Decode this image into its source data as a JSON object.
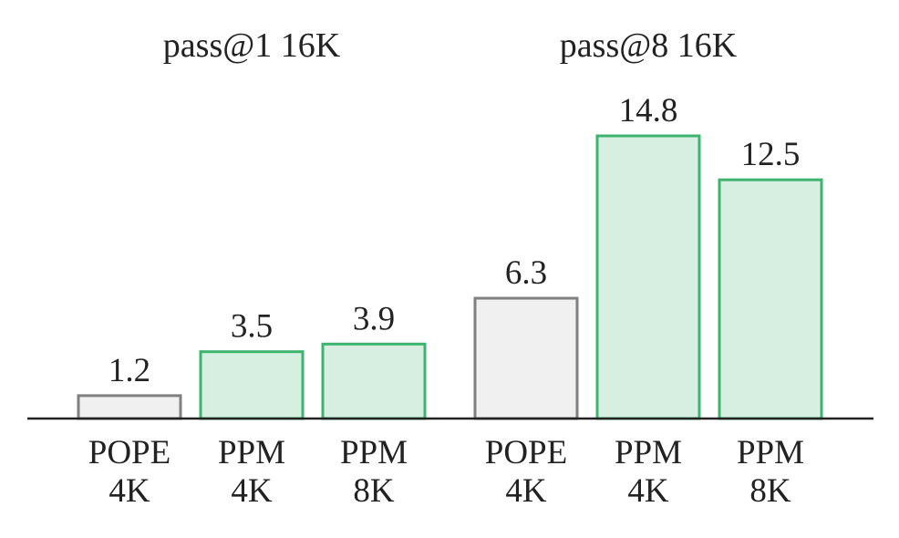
{
  "chart_data": {
    "type": "bar",
    "groups": [
      {
        "title": "pass@1 16K",
        "bars": [
          {
            "label_line1": "POPE",
            "label_line2": "4K",
            "value": 1.2,
            "value_label": "1.2",
            "kind": "baseline"
          },
          {
            "label_line1": "PPM",
            "label_line2": "4K",
            "value": 3.5,
            "value_label": "3.5",
            "kind": "ours"
          },
          {
            "label_line1": "PPM",
            "label_line2": "8K",
            "value": 3.9,
            "value_label": "3.9",
            "kind": "ours"
          }
        ]
      },
      {
        "title": "pass@8 16K",
        "bars": [
          {
            "label_line1": "POPE",
            "label_line2": "4K",
            "value": 6.3,
            "value_label": "6.3",
            "kind": "baseline"
          },
          {
            "label_line1": "PPM",
            "label_line2": "4K",
            "value": 14.8,
            "value_label": "14.8",
            "kind": "ours"
          },
          {
            "label_line1": "PPM",
            "label_line2": "8K",
            "value": 12.5,
            "value_label": "12.5",
            "kind": "ours"
          }
        ]
      }
    ],
    "ylim": [
      0,
      14.8
    ],
    "grid": false,
    "colors": {
      "baseline_fill": "#f0f0f0",
      "baseline_stroke": "#808080",
      "ours_fill": "#d7efe0",
      "ours_stroke": "#3cb46e",
      "axis": "#222222"
    }
  }
}
